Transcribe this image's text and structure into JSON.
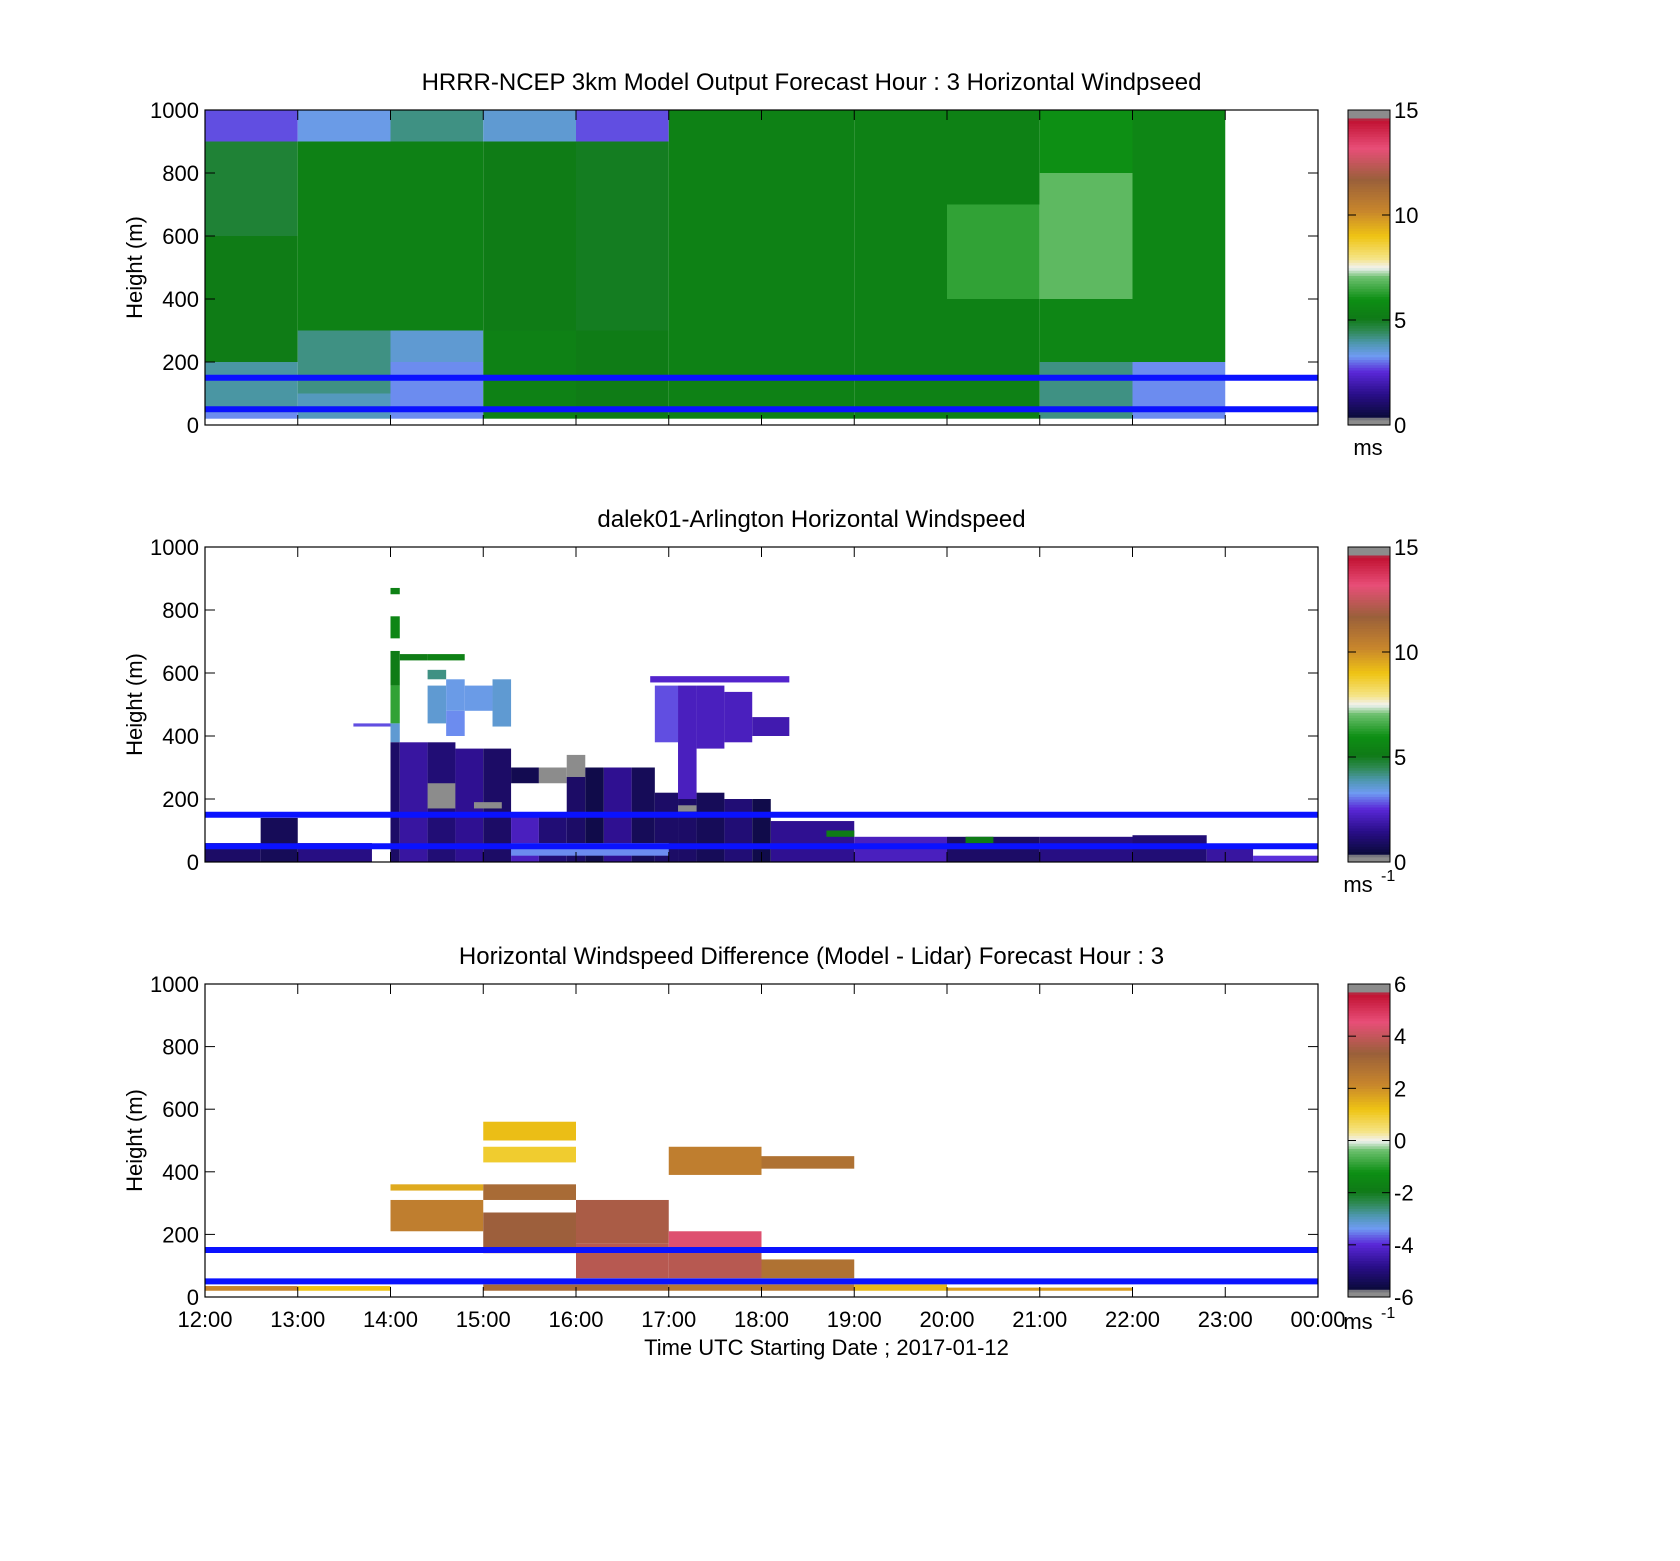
{
  "x_axis": {
    "ticks": [
      "12:00",
      "13:00",
      "14:00",
      "15:00",
      "16:00",
      "17:00",
      "18:00",
      "19:00",
      "20:00",
      "21:00",
      "22:00",
      "23:00",
      "00:00"
    ],
    "label": "Time UTC  Starting Date ; 2017-01-12"
  },
  "palette": {
    "blue_line": "#0a12ff",
    "dark_green": "#0f7a16",
    "green": "#0d8f14",
    "pale_green": "#6cc06e",
    "teal": "#3d8f78",
    "steel_blue": "#4f98b2",
    "lavender": "#7f80ec",
    "light_blue": "#7db6ff",
    "purple": "#4b17b2",
    "navy": "#120f4e",
    "grey": "#8a8a8a",
    "gold": "#eec31a",
    "ochre": "#c8862c",
    "brown": "#9a603a",
    "pink": "#e84e78"
  },
  "chart_data": [
    {
      "type": "heatmap",
      "title": "HRRR-NCEP 3km Model Output   Forecast Hour : 3 Horizontal Windpseed",
      "ylabel": "Height (m)",
      "ylim": [
        0,
        1000
      ],
      "yticks": [
        "0",
        "200",
        "400",
        "600",
        "800",
        "1000"
      ],
      "xlim": [
        12,
        24
      ],
      "colorbar": {
        "range": [
          0,
          15
        ],
        "ticks": [
          "0",
          "5",
          "10",
          "15"
        ],
        "unit": "ms"
      },
      "reference_lines_m": [
        150,
        50
      ],
      "cells": [
        {
          "x0": 12,
          "x1": 13,
          "y0": 900,
          "y1": 1000,
          "v": 2.8
        },
        {
          "x0": 12,
          "x1": 13,
          "y0": 600,
          "y1": 900,
          "v": 4.8
        },
        {
          "x0": 12,
          "x1": 13,
          "y0": 200,
          "y1": 600,
          "v": 5.2
        },
        {
          "x0": 12,
          "x1": 13,
          "y0": 40,
          "y1": 200,
          "v": 4.0
        },
        {
          "x0": 12,
          "x1": 13,
          "y0": 20,
          "y1": 40,
          "v": 3.2
        },
        {
          "x0": 13,
          "x1": 14,
          "y0": 900,
          "y1": 1000,
          "v": 3.4
        },
        {
          "x0": 13,
          "x1": 14,
          "y0": 300,
          "y1": 900,
          "v": 5.4
        },
        {
          "x0": 13,
          "x1": 14,
          "y0": 100,
          "y1": 300,
          "v": 4.2
        },
        {
          "x0": 13,
          "x1": 14,
          "y0": 20,
          "y1": 100,
          "v": 3.8
        },
        {
          "x0": 14,
          "x1": 15,
          "y0": 900,
          "y1": 1000,
          "v": 4.2
        },
        {
          "x0": 14,
          "x1": 15,
          "y0": 300,
          "y1": 900,
          "v": 5.4
        },
        {
          "x0": 14,
          "x1": 15,
          "y0": 200,
          "y1": 300,
          "v": 3.6
        },
        {
          "x0": 14,
          "x1": 15,
          "y0": 20,
          "y1": 200,
          "v": 3.2
        },
        {
          "x0": 15,
          "x1": 16,
          "y0": 900,
          "y1": 1000,
          "v": 3.6
        },
        {
          "x0": 15,
          "x1": 16,
          "y0": 300,
          "y1": 900,
          "v": 5.2
        },
        {
          "x0": 15,
          "x1": 16,
          "y0": 20,
          "y1": 300,
          "v": 5.4
        },
        {
          "x0": 16,
          "x1": 17,
          "y0": 900,
          "y1": 1000,
          "v": 2.8
        },
        {
          "x0": 16,
          "x1": 17,
          "y0": 300,
          "y1": 900,
          "v": 5.0
        },
        {
          "x0": 16,
          "x1": 17,
          "y0": 20,
          "y1": 300,
          "v": 5.2
        },
        {
          "x0": 17,
          "x1": 18,
          "y0": 20,
          "y1": 1000,
          "v": 5.4
        },
        {
          "x0": 18,
          "x1": 19,
          "y0": 20,
          "y1": 1000,
          "v": 5.4
        },
        {
          "x0": 19,
          "x1": 20,
          "y0": 20,
          "y1": 1000,
          "v": 5.4
        },
        {
          "x0": 20,
          "x1": 21,
          "y0": 700,
          "y1": 1000,
          "v": 5.4
        },
        {
          "x0": 20,
          "x1": 21,
          "y0": 400,
          "y1": 700,
          "v": 6.4
        },
        {
          "x0": 20,
          "x1": 21,
          "y0": 20,
          "y1": 400,
          "v": 5.4
        },
        {
          "x0": 21,
          "x1": 22,
          "y0": 800,
          "y1": 1000,
          "v": 6.0
        },
        {
          "x0": 21,
          "x1": 22,
          "y0": 400,
          "y1": 800,
          "v": 6.9
        },
        {
          "x0": 21,
          "x1": 22,
          "y0": 200,
          "y1": 400,
          "v": 5.6
        },
        {
          "x0": 21,
          "x1": 22,
          "y0": 20,
          "y1": 200,
          "v": 4.2
        },
        {
          "x0": 22,
          "x1": 23,
          "y0": 200,
          "y1": 1000,
          "v": 5.6
        },
        {
          "x0": 22,
          "x1": 23,
          "y0": 20,
          "y1": 200,
          "v": 3.2
        }
      ]
    },
    {
      "type": "heatmap",
      "title": "dalek01-Arlington  Horizontal Windspeed",
      "ylabel": "Height (m)",
      "ylim": [
        0,
        1000
      ],
      "yticks": [
        "0",
        "200",
        "400",
        "600",
        "800",
        "1000"
      ],
      "xlim": [
        12,
        24
      ],
      "colorbar": {
        "range": [
          0,
          15
        ],
        "ticks": [
          "0",
          "5",
          "10",
          "15"
        ],
        "unit": "ms",
        "unit_exponent": "-1"
      },
      "reference_lines_m": [
        150,
        50
      ],
      "cells": [
        {
          "x0": 14,
          "x1": 14.1,
          "y0": 850,
          "y1": 870,
          "v": 5.4
        },
        {
          "x0": 14,
          "x1": 14.1,
          "y0": 710,
          "y1": 780,
          "v": 5.6
        },
        {
          "x0": 14,
          "x1": 14.1,
          "y0": 560,
          "y1": 670,
          "v": 5.2
        },
        {
          "x0": 14,
          "x1": 14.1,
          "y0": 440,
          "y1": 560,
          "v": 6.4
        },
        {
          "x0": 14,
          "x1": 14.1,
          "y0": 380,
          "y1": 440,
          "v": 3.6
        },
        {
          "x0": 13.6,
          "x1": 14.0,
          "y0": 430,
          "y1": 440,
          "v": 2.8
        },
        {
          "x0": 14,
          "x1": 14.1,
          "y0": 0,
          "y1": 380,
          "v": 1.0
        },
        {
          "x0": 14.1,
          "x1": 14.4,
          "y0": 640,
          "y1": 660,
          "v": 5.2
        },
        {
          "x0": 14.4,
          "x1": 14.8,
          "y0": 640,
          "y1": 660,
          "v": 5.4
        },
        {
          "x0": 14.4,
          "x1": 14.6,
          "y0": 580,
          "y1": 610,
          "v": 4.2
        },
        {
          "x0": 14.4,
          "x1": 14.6,
          "y0": 440,
          "y1": 560,
          "v": 3.6
        },
        {
          "x0": 14.6,
          "x1": 14.8,
          "y0": 480,
          "y1": 580,
          "v": 3.4
        },
        {
          "x0": 14.6,
          "x1": 14.8,
          "y0": 400,
          "y1": 480,
          "v": 3.2
        },
        {
          "x0": 14.8,
          "x1": 15.1,
          "y0": 480,
          "y1": 560,
          "v": 3.4
        },
        {
          "x0": 15.1,
          "x1": 15.3,
          "y0": 430,
          "y1": 580,
          "v": 3.6
        },
        {
          "x0": 14.1,
          "x1": 14.4,
          "y0": 0,
          "y1": 380,
          "v": 1.8
        },
        {
          "x0": 14.4,
          "x1": 14.7,
          "y0": 0,
          "y1": 380,
          "v": 1.2
        },
        {
          "x0": 14.4,
          "x1": 14.7,
          "y0": 170,
          "y1": 250,
          "v": 14.8
        },
        {
          "x0": 14.7,
          "x1": 15.0,
          "y0": 0,
          "y1": 360,
          "v": 1.6
        },
        {
          "x0": 15.0,
          "x1": 15.3,
          "y0": 0,
          "y1": 360,
          "v": 1.0
        },
        {
          "x0": 14.9,
          "x1": 15.2,
          "y0": 170,
          "y1": 190,
          "v": 14.8
        },
        {
          "x0": 15.3,
          "x1": 15.6,
          "y0": 250,
          "y1": 300,
          "v": 0.7
        },
        {
          "x0": 15.3,
          "x1": 15.6,
          "y0": 0,
          "y1": 150,
          "v": 2.2
        },
        {
          "x0": 15.6,
          "x1": 15.9,
          "y0": 250,
          "y1": 300,
          "v": 14.8
        },
        {
          "x0": 15.6,
          "x1": 15.9,
          "y0": 0,
          "y1": 150,
          "v": 1.2
        },
        {
          "x0": 15.9,
          "x1": 16.1,
          "y0": 270,
          "y1": 340,
          "v": 14.8
        },
        {
          "x0": 15.9,
          "x1": 16.1,
          "y0": 0,
          "y1": 270,
          "v": 1.0
        },
        {
          "x0": 16.1,
          "x1": 16.3,
          "y0": 0,
          "y1": 300,
          "v": 0.6
        },
        {
          "x0": 16.3,
          "x1": 16.6,
          "y0": 0,
          "y1": 300,
          "v": 1.6
        },
        {
          "x0": 16.6,
          "x1": 16.85,
          "y0": 0,
          "y1": 300,
          "v": 0.8
        },
        {
          "x0": 16.85,
          "x1": 17.1,
          "y0": 380,
          "y1": 560,
          "v": 2.8
        },
        {
          "x0": 16.85,
          "x1": 17.1,
          "y0": 0,
          "y1": 220,
          "v": 1.0
        },
        {
          "x0": 17.1,
          "x1": 17.3,
          "y0": 200,
          "y1": 560,
          "v": 2.2
        },
        {
          "x0": 17.1,
          "x1": 17.3,
          "y0": 0,
          "y1": 200,
          "v": 1.0
        },
        {
          "x0": 17.1,
          "x1": 17.3,
          "y0": 160,
          "y1": 180,
          "v": 14.8
        },
        {
          "x0": 17.3,
          "x1": 17.6,
          "y0": 360,
          "y1": 560,
          "v": 2.2
        },
        {
          "x0": 17.3,
          "x1": 17.6,
          "y0": 0,
          "y1": 220,
          "v": 0.8
        },
        {
          "x0": 17.6,
          "x1": 17.9,
          "y0": 380,
          "y1": 540,
          "v": 2.2
        },
        {
          "x0": 17.6,
          "x1": 17.9,
          "y0": 0,
          "y1": 200,
          "v": 1.2
        },
        {
          "x0": 17.9,
          "x1": 18.3,
          "y0": 400,
          "y1": 460,
          "v": 2.0
        },
        {
          "x0": 17.9,
          "x1": 18.1,
          "y0": 0,
          "y1": 200,
          "v": 0.6
        },
        {
          "x0": 16.8,
          "x1": 18.3,
          "y0": 570,
          "y1": 590,
          "v": 2.4
        },
        {
          "x0": 18.1,
          "x1": 19.0,
          "y0": 0,
          "y1": 130,
          "v": 1.6
        },
        {
          "x0": 18.7,
          "x1": 19.0,
          "y0": 80,
          "y1": 100,
          "v": 5.2
        },
        {
          "x0": 19.0,
          "x1": 20.0,
          "y0": 0,
          "y1": 80,
          "v": 2.2
        },
        {
          "x0": 20.0,
          "x1": 21.0,
          "y0": 0,
          "y1": 80,
          "v": 1.0
        },
        {
          "x0": 20.2,
          "x1": 20.5,
          "y0": 60,
          "y1": 80,
          "v": 5.2
        },
        {
          "x0": 21.0,
          "x1": 22.0,
          "y0": 0,
          "y1": 80,
          "v": 1.4
        },
        {
          "x0": 22.0,
          "x1": 22.8,
          "y0": 0,
          "y1": 85,
          "v": 1.2
        },
        {
          "x0": 22.8,
          "x1": 23.3,
          "y0": 0,
          "y1": 50,
          "v": 1.8
        },
        {
          "x0": 23.3,
          "x1": 24.0,
          "y0": 0,
          "y1": 20,
          "v": 2.6
        },
        {
          "x0": 12.0,
          "x1": 12.6,
          "y0": 0,
          "y1": 60,
          "v": 1.0
        },
        {
          "x0": 12.6,
          "x1": 13.0,
          "y0": 0,
          "y1": 140,
          "v": 0.8
        },
        {
          "x0": 13.0,
          "x1": 13.8,
          "y0": 0,
          "y1": 60,
          "v": 1.4
        },
        {
          "x0": 15.3,
          "x1": 17.0,
          "y0": 20,
          "y1": 60,
          "v": 3.2
        }
      ]
    },
    {
      "type": "heatmap",
      "title": "Horizontal Windspeed Difference (Model - Lidar) Forecast Hour : 3",
      "ylabel": "Height (m)",
      "ylim": [
        0,
        1000
      ],
      "yticks": [
        "0",
        "200",
        "400",
        "600",
        "800",
        "1000"
      ],
      "xlim": [
        12,
        24
      ],
      "colorbar": {
        "range": [
          -6,
          6
        ],
        "ticks": [
          "-6",
          "-4",
          "-2",
          "0",
          "2",
          "4",
          "6"
        ],
        "unit": "ms",
        "unit_exponent": "-1"
      },
      "reference_lines_m": [
        150,
        50
      ],
      "cells": [
        {
          "x0": 15,
          "x1": 16,
          "y0": 500,
          "y1": 560,
          "v": 1.3
        },
        {
          "x0": 15,
          "x1": 16,
          "y0": 430,
          "y1": 480,
          "v": 1.0
        },
        {
          "x0": 14,
          "x1": 15,
          "y0": 340,
          "y1": 360,
          "v": 1.6
        },
        {
          "x0": 14,
          "x1": 15,
          "y0": 210,
          "y1": 310,
          "v": 2.4
        },
        {
          "x0": 15,
          "x1": 16,
          "y0": 310,
          "y1": 360,
          "v": 3.0
        },
        {
          "x0": 15,
          "x1": 16,
          "y0": 140,
          "y1": 270,
          "v": 3.4
        },
        {
          "x0": 16,
          "x1": 17,
          "y0": 170,
          "y1": 310,
          "v": 3.6
        },
        {
          "x0": 16,
          "x1": 17,
          "y0": 60,
          "y1": 170,
          "v": 3.8
        },
        {
          "x0": 17,
          "x1": 18,
          "y0": 390,
          "y1": 480,
          "v": 2.4
        },
        {
          "x0": 18,
          "x1": 19,
          "y0": 410,
          "y1": 450,
          "v": 2.8
        },
        {
          "x0": 17,
          "x1": 18,
          "y0": 150,
          "y1": 210,
          "v": 4.4
        },
        {
          "x0": 17,
          "x1": 18,
          "y0": 60,
          "y1": 150,
          "v": 3.8
        },
        {
          "x0": 18,
          "x1": 19,
          "y0": 60,
          "y1": 120,
          "v": 2.8
        },
        {
          "x0": 12,
          "x1": 13,
          "y0": 20,
          "y1": 35,
          "v": 2.2
        },
        {
          "x0": 13,
          "x1": 14,
          "y0": 20,
          "y1": 35,
          "v": 1.2
        },
        {
          "x0": 15,
          "x1": 17,
          "y0": 20,
          "y1": 40,
          "v": 3.0
        },
        {
          "x0": 17,
          "x1": 19,
          "y0": 20,
          "y1": 40,
          "v": 2.6
        },
        {
          "x0": 19,
          "x1": 20,
          "y0": 20,
          "y1": 40,
          "v": 1.4
        },
        {
          "x0": 20,
          "x1": 22,
          "y0": 20,
          "y1": 30,
          "v": 1.8
        }
      ]
    }
  ]
}
